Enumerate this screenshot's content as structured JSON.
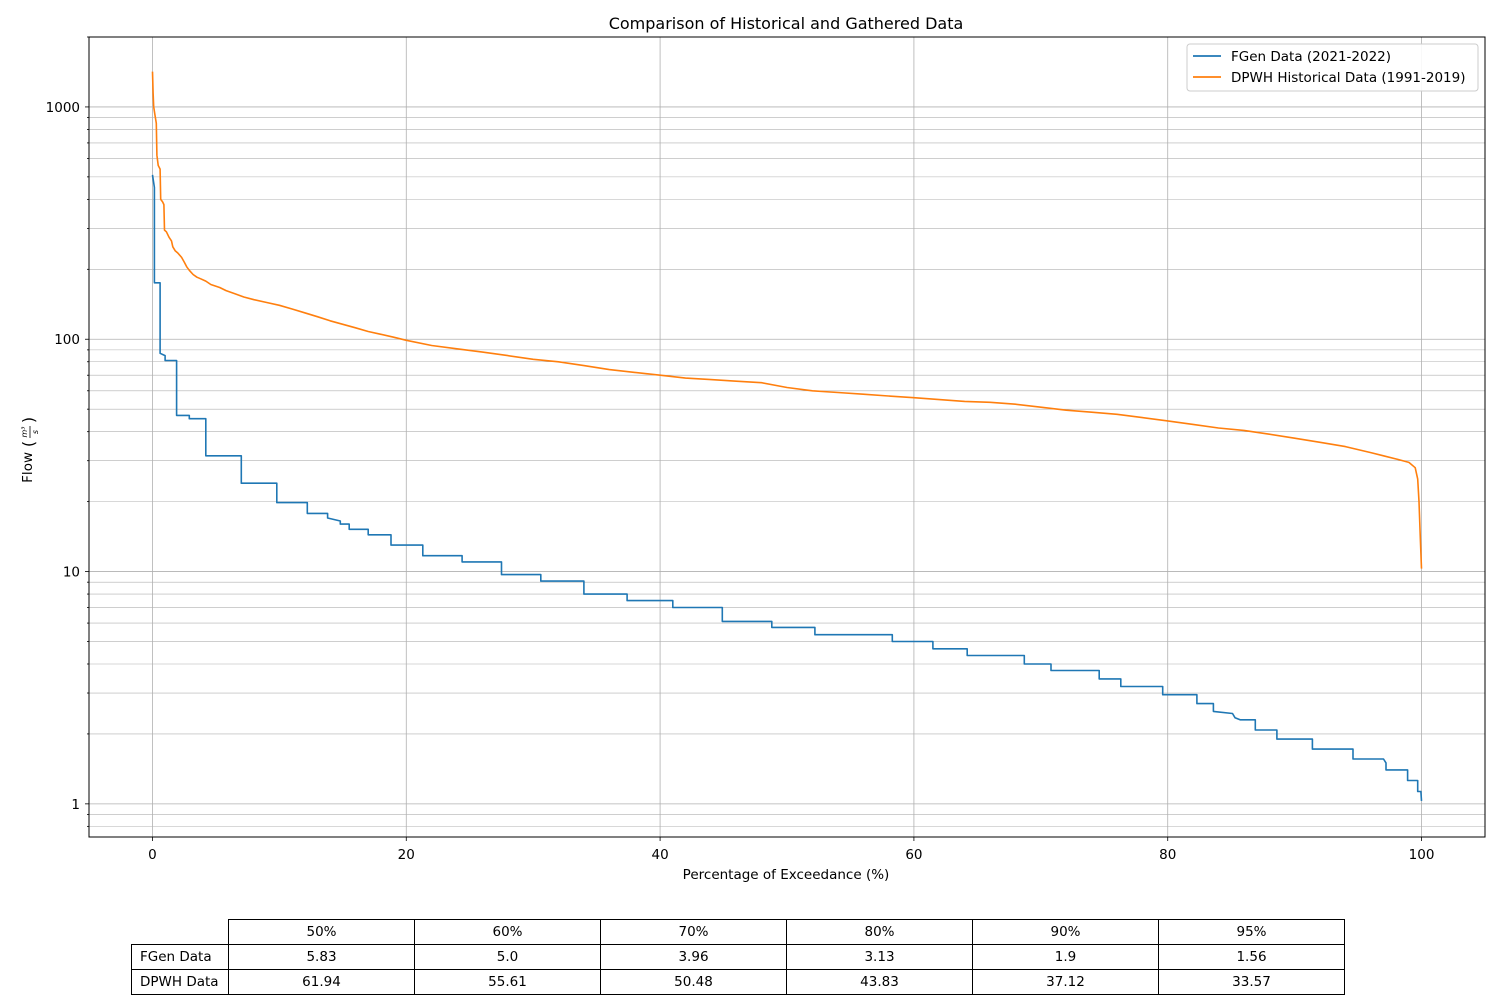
{
  "chart_data": {
    "type": "line",
    "title": "Comparison of Historical and Gathered Data",
    "xlabel": "Percentage of Exceedance (%)",
    "ylabel": "Flow (m³/s)",
    "ylabel_base": "Flow",
    "ylabel_num": "m³",
    "ylabel_den": "s",
    "xlim": [
      -5,
      105
    ],
    "ylim": [
      0.72,
      2000
    ],
    "yscale": "log",
    "x_ticks": [
      0,
      20,
      40,
      60,
      80,
      100
    ],
    "x_tick_labels": [
      "0",
      "20",
      "40",
      "60",
      "80",
      "100"
    ],
    "y_ticks": [
      1,
      10,
      100,
      1000
    ],
    "y_tick_labels": [
      "1",
      "10",
      "100",
      "1000"
    ],
    "grid": true,
    "legend_position": "top-right",
    "series": [
      {
        "name": "FGen Data (2021-2022)",
        "color": "#1f77b4",
        "step": true,
        "points": [
          [
            0,
            510
          ],
          [
            0.15,
            450
          ],
          [
            0.15,
            175
          ],
          [
            0.6,
            175
          ],
          [
            0.6,
            87
          ],
          [
            1.0,
            85
          ],
          [
            1.0,
            81
          ],
          [
            1.9,
            81
          ],
          [
            1.9,
            47
          ],
          [
            2.9,
            47
          ],
          [
            2.9,
            45.5
          ],
          [
            4.2,
            45.5
          ],
          [
            4.2,
            31.5
          ],
          [
            7.0,
            31.5
          ],
          [
            7.0,
            24
          ],
          [
            9.8,
            24
          ],
          [
            9.8,
            19.8
          ],
          [
            12.2,
            19.8
          ],
          [
            12.2,
            17.8
          ],
          [
            13.8,
            17.8
          ],
          [
            13.8,
            17
          ],
          [
            14.8,
            16.5
          ],
          [
            14.8,
            16
          ],
          [
            15.5,
            16
          ],
          [
            15.5,
            15.2
          ],
          [
            17.0,
            15.2
          ],
          [
            17.0,
            14.4
          ],
          [
            18.8,
            14.4
          ],
          [
            18.8,
            13
          ],
          [
            21.3,
            13
          ],
          [
            21.3,
            11.7
          ],
          [
            24.4,
            11.7
          ],
          [
            24.4,
            11
          ],
          [
            27.5,
            11
          ],
          [
            27.5,
            9.7
          ],
          [
            30.6,
            9.7
          ],
          [
            30.6,
            9.1
          ],
          [
            34.0,
            9.1
          ],
          [
            34.0,
            8.0
          ],
          [
            37.4,
            8.0
          ],
          [
            37.4,
            7.5
          ],
          [
            41.0,
            7.5
          ],
          [
            41.0,
            7.0
          ],
          [
            44.9,
            7.0
          ],
          [
            44.9,
            6.1
          ],
          [
            48.8,
            6.1
          ],
          [
            48.8,
            5.75
          ],
          [
            52.2,
            5.75
          ],
          [
            52.2,
            5.35
          ],
          [
            58.3,
            5.35
          ],
          [
            58.3,
            5.0
          ],
          [
            61.5,
            5.0
          ],
          [
            61.5,
            4.65
          ],
          [
            64.2,
            4.65
          ],
          [
            64.2,
            4.35
          ],
          [
            68.7,
            4.35
          ],
          [
            68.7,
            4.0
          ],
          [
            70.8,
            4.0
          ],
          [
            70.8,
            3.75
          ],
          [
            74.6,
            3.75
          ],
          [
            74.6,
            3.45
          ],
          [
            76.3,
            3.45
          ],
          [
            76.3,
            3.2
          ],
          [
            79.6,
            3.2
          ],
          [
            79.6,
            2.95
          ],
          [
            82.3,
            2.95
          ],
          [
            82.3,
            2.7
          ],
          [
            83.6,
            2.7
          ],
          [
            83.6,
            2.5
          ],
          [
            85.1,
            2.45
          ],
          [
            85.3,
            2.35
          ],
          [
            85.7,
            2.3
          ],
          [
            86.9,
            2.3
          ],
          [
            86.9,
            2.08
          ],
          [
            88.6,
            2.08
          ],
          [
            88.6,
            1.9
          ],
          [
            91.4,
            1.9
          ],
          [
            91.4,
            1.72
          ],
          [
            94.6,
            1.72
          ],
          [
            94.6,
            1.56
          ],
          [
            97.0,
            1.56
          ],
          [
            97.2,
            1.5
          ],
          [
            97.2,
            1.4
          ],
          [
            98.9,
            1.4
          ],
          [
            98.9,
            1.26
          ],
          [
            99.7,
            1.26
          ],
          [
            99.7,
            1.13
          ],
          [
            99.95,
            1.13
          ],
          [
            100,
            1.03
          ]
        ]
      },
      {
        "name": "DPWH Historical Data (1991-2019)",
        "color": "#ff7f0e",
        "step": false,
        "points": [
          [
            0,
            1420
          ],
          [
            0.05,
            1150
          ],
          [
            0.1,
            1000
          ],
          [
            0.2,
            920
          ],
          [
            0.3,
            850
          ],
          [
            0.35,
            620
          ],
          [
            0.45,
            560
          ],
          [
            0.6,
            540
          ],
          [
            0.65,
            400
          ],
          [
            0.8,
            390
          ],
          [
            0.9,
            380
          ],
          [
            0.95,
            295
          ],
          [
            1.1,
            290
          ],
          [
            1.3,
            275
          ],
          [
            1.5,
            265
          ],
          [
            1.6,
            250
          ],
          [
            1.8,
            240
          ],
          [
            2.0,
            235
          ],
          [
            2.3,
            225
          ],
          [
            2.5,
            215
          ],
          [
            2.7,
            205
          ],
          [
            2.9,
            198
          ],
          [
            3.2,
            190
          ],
          [
            3.5,
            185
          ],
          [
            3.8,
            182
          ],
          [
            4.2,
            178
          ],
          [
            4.6,
            172
          ],
          [
            5.3,
            167
          ],
          [
            5.8,
            162
          ],
          [
            6.5,
            157
          ],
          [
            7.2,
            152
          ],
          [
            8.0,
            148
          ],
          [
            9.0,
            144
          ],
          [
            10.0,
            140
          ],
          [
            11.0,
            135
          ],
          [
            12.0,
            130
          ],
          [
            13.0,
            125
          ],
          [
            14.0,
            120
          ],
          [
            15.0,
            116
          ],
          [
            16.0,
            112
          ],
          [
            17.0,
            108
          ],
          [
            18.0,
            105
          ],
          [
            19.0,
            102
          ],
          [
            20.0,
            99
          ],
          [
            22.0,
            94
          ],
          [
            24.0,
            91
          ],
          [
            26.0,
            88
          ],
          [
            28.0,
            85
          ],
          [
            30.0,
            82
          ],
          [
            32.0,
            80
          ],
          [
            34.0,
            77
          ],
          [
            36.0,
            74
          ],
          [
            38.0,
            72
          ],
          [
            40.0,
            70
          ],
          [
            42.0,
            68
          ],
          [
            44.0,
            67
          ],
          [
            46.0,
            66
          ],
          [
            48.0,
            65
          ],
          [
            50.0,
            62
          ],
          [
            52.0,
            60
          ],
          [
            54.0,
            59
          ],
          [
            56.0,
            58
          ],
          [
            58.0,
            57
          ],
          [
            60.0,
            56
          ],
          [
            62.0,
            55
          ],
          [
            64.0,
            54
          ],
          [
            66.0,
            53.5
          ],
          [
            68.0,
            52.5
          ],
          [
            70.0,
            51
          ],
          [
            72.0,
            49.5
          ],
          [
            74.0,
            48.5
          ],
          [
            76.0,
            47.5
          ],
          [
            78.0,
            46
          ],
          [
            80.0,
            44.5
          ],
          [
            82.0,
            43
          ],
          [
            84.0,
            41.5
          ],
          [
            86.0,
            40.5
          ],
          [
            88.0,
            39
          ],
          [
            90.0,
            37.5
          ],
          [
            92.0,
            36
          ],
          [
            94.0,
            34.5
          ],
          [
            96.0,
            32.5
          ],
          [
            97.0,
            31.5
          ],
          [
            98.0,
            30.5
          ],
          [
            99.0,
            29.5
          ],
          [
            99.5,
            28
          ],
          [
            99.7,
            25
          ],
          [
            99.8,
            20
          ],
          [
            99.9,
            14
          ],
          [
            100,
            10.3
          ]
        ]
      }
    ]
  },
  "table": {
    "col_labels": [
      "50%",
      "60%",
      "70%",
      "80%",
      "90%",
      "95%"
    ],
    "rows": [
      {
        "label": "FGen Data",
        "values": [
          "5.83",
          "5.0",
          "3.96",
          "3.13",
          "1.9",
          "1.56"
        ]
      },
      {
        "label": "DPWH Data",
        "values": [
          "61.94",
          "55.61",
          "50.48",
          "43.83",
          "37.12",
          "33.57"
        ]
      }
    ]
  }
}
